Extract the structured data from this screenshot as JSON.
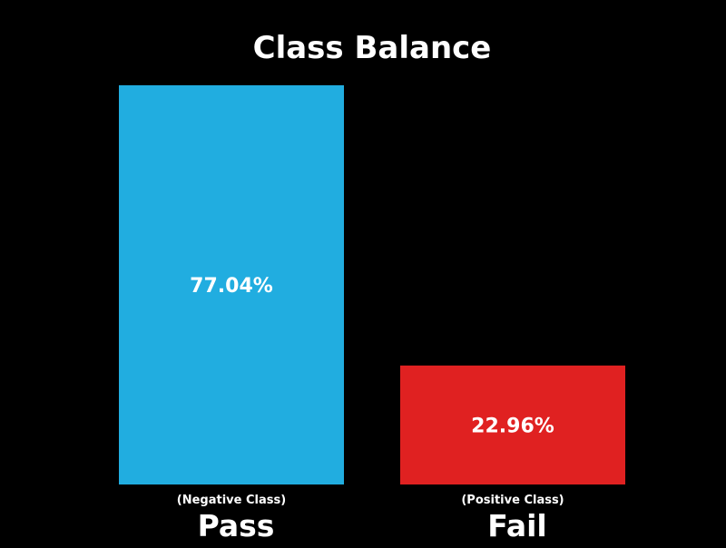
{
  "chart_data": {
    "type": "bar",
    "title": "Class Balance",
    "categories": [
      "Pass",
      "Fail"
    ],
    "category_sublabels": [
      "(Negative Class)",
      "(Positive Class)"
    ],
    "values": [
      77.04,
      22.96
    ],
    "value_labels": [
      "77.04%",
      "22.96%"
    ],
    "colors": [
      "#21ADE0",
      "#E02121"
    ],
    "ylim": [
      0,
      77.04
    ],
    "grid": false,
    "legend": "none",
    "background": "#000000",
    "text_color": "#FFFFFF"
  }
}
